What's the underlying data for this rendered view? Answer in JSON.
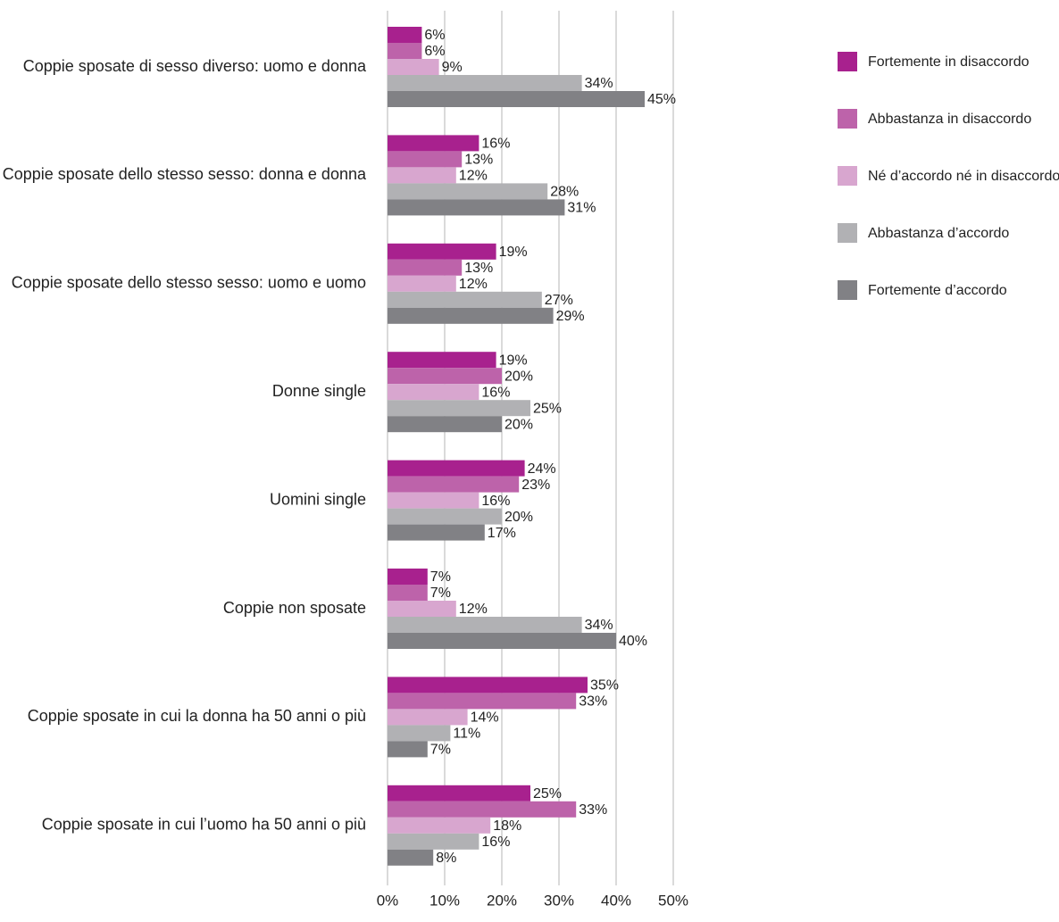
{
  "chart_data": {
    "type": "bar",
    "orientation": "horizontal",
    "title": "",
    "xlabel": "",
    "ylabel": "",
    "xlim": [
      0,
      50
    ],
    "grid": true,
    "legend_position": "top-right",
    "tick_labels": [
      "0%",
      "10%",
      "20%",
      "30%",
      "40%",
      "50%"
    ],
    "ticks": [
      0,
      10,
      20,
      30,
      40,
      50
    ],
    "categories": [
      "Coppie sposate di sesso diverso: uomo e donna",
      "Coppie sposate dello stesso sesso: donna e donna",
      "Coppie sposate dello stesso sesso: uomo e uomo",
      "Donne single",
      "Uomini single",
      "Coppie non sposate",
      "Coppie sposate in cui la donna ha 50 anni o più",
      "Coppie sposate in cui l’uomo ha 50 anni o più"
    ],
    "series": [
      {
        "name": "Fortemente in disaccordo",
        "color": "#a8218e",
        "values": [
          6,
          16,
          19,
          19,
          24,
          7,
          35,
          25
        ]
      },
      {
        "name": "Abbastanza in disaccordo",
        "color": "#bd63aa",
        "values": [
          6,
          13,
          13,
          20,
          23,
          7,
          33,
          33
        ]
      },
      {
        "name": "Né d’accordo né in disaccordo",
        "color": "#d8a6cf",
        "values": [
          9,
          12,
          12,
          16,
          16,
          12,
          14,
          18
        ]
      },
      {
        "name": "Abbastanza d’accordo",
        "color": "#b1b1b4",
        "values": [
          34,
          28,
          27,
          25,
          20,
          34,
          11,
          16
        ]
      },
      {
        "name": "Fortemente d’accordo",
        "color": "#818185",
        "values": [
          45,
          31,
          29,
          20,
          17,
          40,
          7,
          8
        ]
      }
    ],
    "value_suffix": "%"
  }
}
